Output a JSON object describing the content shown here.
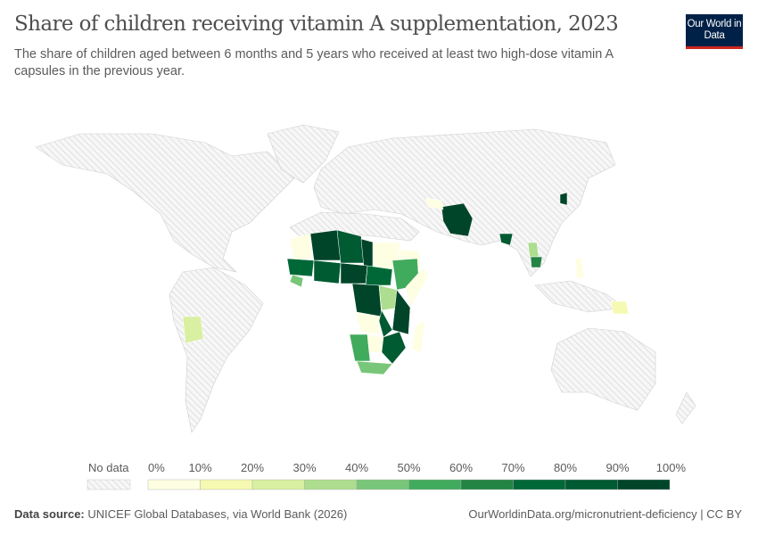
{
  "header": {
    "title": "Share of children receiving vitamin A supplementation, 2023",
    "subtitle": "The share of children aged between 6 months and 5 years who received at least two high-dose vitamin A capsules in the previous year.",
    "logo_text": "Our World in Data",
    "logo_colors": {
      "background": "#002147",
      "underline": "#ce261e"
    }
  },
  "legend": {
    "no_data_label": "No data",
    "ticks": [
      "0%",
      "10%",
      "20%",
      "30%",
      "40%",
      "50%",
      "60%",
      "70%",
      "80%",
      "90%",
      "100%"
    ],
    "colors": [
      "#fefee2",
      "#f6f9b2",
      "#d9efa1",
      "#addd8e",
      "#78c679",
      "#41ab5d",
      "#238443",
      "#006837",
      "#005a32",
      "#004529"
    ],
    "no_data_color": "#e6e6e6"
  },
  "footer": {
    "source_label": "Data source:",
    "source": "UNICEF Global Databases, via World Bank (2026)",
    "url": "OurWorldinData.org/micronutrient-deficiency | CC BY"
  }
}
